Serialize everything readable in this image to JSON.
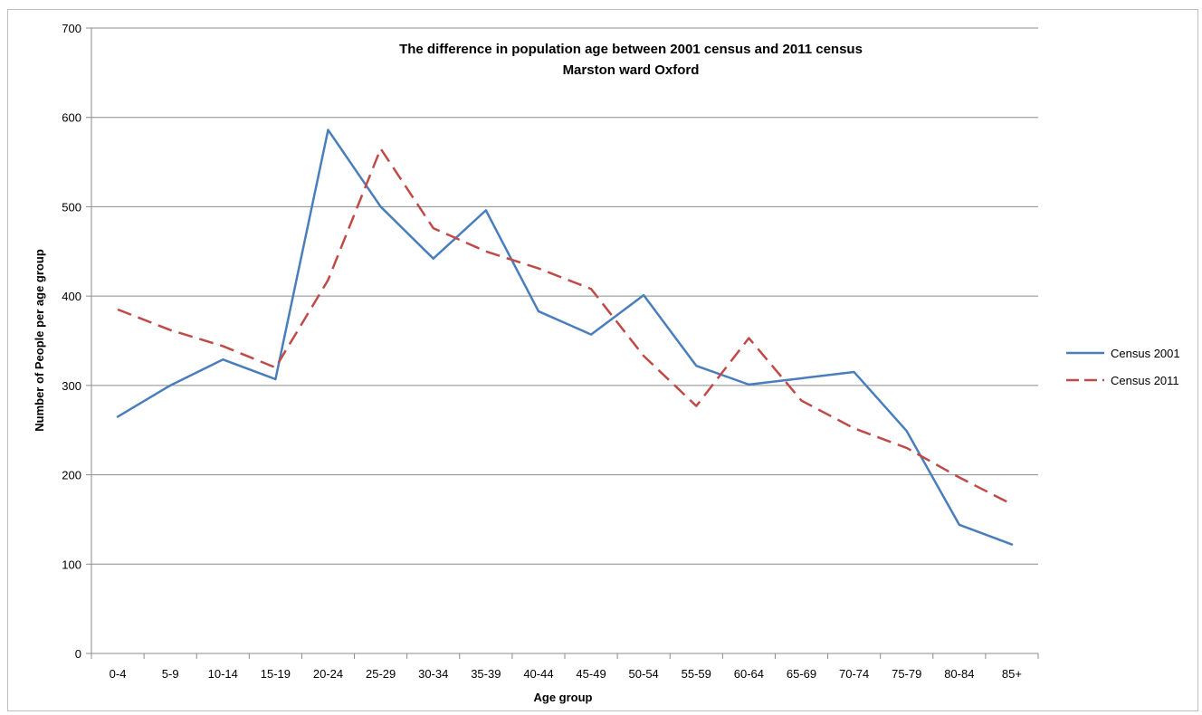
{
  "chart_data": {
    "type": "line",
    "title": "The difference in population age between 2001 census and 2011 census",
    "subtitle": "Marston ward Oxford",
    "xlabel": "Age group",
    "ylabel": "Number of People per age group",
    "ylim": [
      0,
      700
    ],
    "yticks": [
      0,
      100,
      200,
      300,
      400,
      500,
      600,
      700
    ],
    "grid": true,
    "legend_position": "right",
    "categories": [
      "0-4",
      "5-9",
      "10-14",
      "15-19",
      "20-24",
      "25-29",
      "30-34",
      "35-39",
      "40-44",
      "45-49",
      "50-54",
      "55-59",
      "60-64",
      "65-69",
      "70-74",
      "75-79",
      "80-84",
      "85+"
    ],
    "series": [
      {
        "name": "Census 2001",
        "color": "#4a7ebb",
        "style": "solid",
        "values": [
          265,
          300,
          329,
          307,
          586,
          500,
          442,
          496,
          383,
          357,
          401,
          322,
          301,
          308,
          315,
          249,
          144,
          122
        ]
      },
      {
        "name": "Census 2011",
        "color": "#be4b48",
        "style": "dashed",
        "values": [
          385,
          362,
          344,
          320,
          418,
          565,
          476,
          450,
          431,
          408,
          333,
          277,
          353,
          283,
          252,
          230,
          197,
          167
        ]
      }
    ]
  }
}
